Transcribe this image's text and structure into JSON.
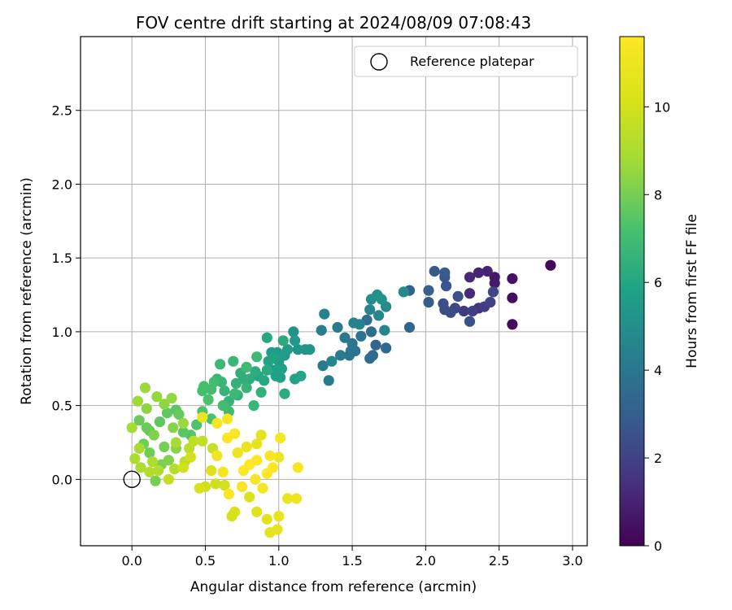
{
  "chart_data": {
    "type": "scatter",
    "title": "FOV centre drift starting at 2024/08/09 07:08:43",
    "xlabel": "Angular distance from reference (arcmin)",
    "ylabel": "Rotation from reference (arcmin)",
    "colorbar_label": "Hours from first FF file",
    "xlim": [
      -0.35,
      3.1
    ],
    "ylim": [
      -0.45,
      3.0
    ],
    "x_ticks": [
      "0.0",
      "0.5",
      "1.0",
      "1.5",
      "2.0",
      "2.5",
      "3.0"
    ],
    "x_tick_values": [
      0.0,
      0.5,
      1.0,
      1.5,
      2.0,
      2.5,
      3.0
    ],
    "y_ticks": [
      "0.0",
      "0.5",
      "1.0",
      "1.5",
      "2.0",
      "2.5"
    ],
    "y_tick_values": [
      0.0,
      0.5,
      1.0,
      1.5,
      2.0,
      2.5
    ],
    "colorbar_ticks": [
      "0",
      "2",
      "4",
      "6",
      "8",
      "10"
    ],
    "colorbar_tick_values": [
      0,
      2,
      4,
      6,
      8,
      10
    ],
    "color_range": [
      0,
      11.6
    ],
    "colormap": "viridis",
    "grid": true,
    "legend": {
      "placement": "top-right",
      "label": "Reference platepar"
    },
    "reference_point": {
      "x": 0.0,
      "y": 0.0
    },
    "series": [
      {
        "points": [
          [
            2.85,
            1.45,
            0.2
          ],
          [
            2.59,
            1.05,
            0.3
          ],
          [
            2.59,
            1.23,
            0.4
          ],
          [
            2.59,
            1.36,
            0.5
          ],
          [
            2.47,
            1.37,
            0.7
          ],
          [
            2.47,
            1.33,
            0.8
          ],
          [
            2.42,
            1.41,
            1.0
          ],
          [
            2.36,
            1.4,
            1.1
          ],
          [
            2.3,
            1.37,
            1.2
          ],
          [
            2.3,
            1.26,
            1.3
          ],
          [
            2.36,
            1.16,
            1.5
          ],
          [
            2.26,
            1.14,
            1.7
          ],
          [
            2.4,
            1.17,
            1.8
          ],
          [
            2.32,
            1.14,
            1.9
          ],
          [
            2.44,
            1.2,
            2.0
          ],
          [
            2.46,
            1.27,
            2.1
          ],
          [
            2.2,
            1.16,
            2.2
          ],
          [
            2.17,
            1.13,
            2.3
          ],
          [
            2.13,
            1.15,
            2.4
          ],
          [
            2.12,
            1.19,
            2.4
          ],
          [
            2.3,
            1.07,
            2.5
          ],
          [
            2.22,
            1.24,
            2.6
          ],
          [
            2.14,
            1.31,
            2.7
          ],
          [
            2.13,
            1.37,
            2.7
          ],
          [
            2.06,
            1.41,
            2.8
          ],
          [
            2.13,
            1.4,
            2.9
          ],
          [
            2.02,
            1.2,
            3.0
          ],
          [
            2.02,
            1.28,
            3.1
          ],
          [
            1.89,
            1.28,
            3.2
          ],
          [
            1.89,
            1.03,
            3.3
          ],
          [
            1.73,
            0.89,
            3.4
          ],
          [
            1.64,
            0.84,
            3.5
          ],
          [
            1.63,
            1.0,
            3.6
          ],
          [
            1.6,
            1.08,
            3.7
          ],
          [
            1.52,
            0.87,
            3.8
          ],
          [
            1.48,
            0.84,
            3.9
          ],
          [
            1.49,
            0.87,
            3.9
          ],
          [
            1.45,
            0.96,
            4.0
          ],
          [
            1.4,
            1.03,
            4.1
          ],
          [
            1.34,
            0.67,
            4.1
          ],
          [
            1.3,
            0.77,
            4.2
          ],
          [
            1.29,
            1.01,
            4.3
          ],
          [
            1.31,
            1.12,
            4.4
          ],
          [
            1.51,
            1.06,
            4.5
          ],
          [
            1.55,
            1.05,
            4.5
          ],
          [
            1.62,
            1.15,
            4.6
          ],
          [
            1.72,
            1.01,
            4.7
          ],
          [
            1.68,
            1.11,
            4.7
          ],
          [
            1.73,
            1.17,
            4.8
          ],
          [
            1.85,
            1.27,
            4.9
          ],
          [
            1.63,
            1.22,
            5.0
          ],
          [
            1.67,
            1.25,
            5.1
          ],
          [
            1.7,
            1.22,
            5.2
          ],
          [
            1.13,
            0.88,
            5.3
          ],
          [
            1.18,
            0.88,
            5.3
          ],
          [
            1.11,
            0.94,
            5.4
          ],
          [
            1.04,
            0.84,
            5.5
          ],
          [
            1.0,
            0.8,
            5.5
          ],
          [
            0.99,
            0.86,
            5.6
          ],
          [
            0.95,
            0.86,
            5.6
          ],
          [
            0.96,
            0.74,
            5.7
          ],
          [
            1.01,
            0.69,
            5.7
          ],
          [
            1.02,
            0.75,
            5.8
          ],
          [
            0.98,
            0.7,
            5.8
          ],
          [
            0.93,
            0.8,
            5.9
          ],
          [
            1.11,
            0.68,
            5.9
          ],
          [
            1.15,
            0.7,
            6.0
          ],
          [
            0.86,
            0.7,
            6.0
          ],
          [
            0.9,
            0.67,
            6.1
          ],
          [
            0.92,
            0.96,
            6.1
          ],
          [
            1.03,
            0.94,
            6.2
          ],
          [
            1.04,
            0.58,
            6.2
          ],
          [
            0.8,
            0.68,
            6.3
          ],
          [
            0.84,
            0.73,
            6.3
          ],
          [
            0.76,
            0.68,
            6.4
          ],
          [
            0.74,
            0.72,
            6.4
          ],
          [
            0.71,
            0.65,
            6.5
          ],
          [
            0.72,
            0.57,
            6.5
          ],
          [
            0.66,
            0.53,
            6.6
          ],
          [
            0.63,
            0.6,
            6.6
          ],
          [
            0.61,
            0.66,
            6.7
          ],
          [
            0.58,
            0.68,
            6.7
          ],
          [
            0.6,
            0.78,
            6.8
          ],
          [
            0.69,
            0.8,
            6.8
          ],
          [
            0.78,
            0.76,
            6.9
          ],
          [
            0.85,
            0.83,
            6.9
          ],
          [
            0.54,
            0.61,
            7.0
          ],
          [
            0.56,
            0.66,
            7.0
          ],
          [
            0.49,
            0.63,
            7.1
          ],
          [
            0.48,
            0.6,
            7.1
          ],
          [
            0.52,
            0.54,
            7.2
          ],
          [
            0.54,
            0.41,
            7.2
          ],
          [
            0.48,
            0.46,
            7.3
          ],
          [
            0.44,
            0.37,
            7.3
          ],
          [
            0.4,
            0.3,
            7.4
          ],
          [
            0.35,
            0.32,
            7.5
          ],
          [
            0.3,
            0.47,
            7.5
          ],
          [
            0.24,
            0.45,
            7.6
          ],
          [
            0.19,
            0.39,
            7.6
          ],
          [
            0.12,
            0.33,
            7.7
          ],
          [
            0.1,
            0.35,
            7.8
          ],
          [
            0.05,
            0.4,
            7.8
          ],
          [
            0.08,
            0.24,
            7.9
          ],
          [
            0.12,
            0.18,
            7.9
          ],
          [
            0.16,
            -0.01,
            8.0
          ],
          [
            0.2,
            0.1,
            8.1
          ],
          [
            0.25,
            0.13,
            8.2
          ],
          [
            0.3,
            0.21,
            8.3
          ],
          [
            0.28,
            0.35,
            8.3
          ],
          [
            0.22,
            0.51,
            8.4
          ],
          [
            0.17,
            0.56,
            8.5
          ],
          [
            0.27,
            0.55,
            8.5
          ],
          [
            0.09,
            0.62,
            8.6
          ],
          [
            0.04,
            0.53,
            8.7
          ],
          [
            0.0,
            0.35,
            8.8
          ],
          [
            0.05,
            0.21,
            8.9
          ],
          [
            0.02,
            0.14,
            9.0
          ],
          [
            0.14,
            0.12,
            9.1
          ],
          [
            0.18,
            0.06,
            9.2
          ],
          [
            0.29,
            0.07,
            9.3
          ],
          [
            0.36,
            0.12,
            9.4
          ],
          [
            0.39,
            0.21,
            9.4
          ],
          [
            0.42,
            0.26,
            9.5
          ],
          [
            0.48,
            0.26,
            9.6
          ],
          [
            0.55,
            0.21,
            9.7
          ],
          [
            0.5,
            -0.05,
            9.8
          ],
          [
            0.57,
            -0.03,
            9.9
          ],
          [
            0.63,
            -0.04,
            10.0
          ],
          [
            0.68,
            -0.25,
            10.1
          ],
          [
            0.7,
            -0.22,
            10.2
          ],
          [
            0.8,
            -0.12,
            10.3
          ],
          [
            0.85,
            -0.22,
            10.4
          ],
          [
            0.92,
            -0.27,
            10.5
          ],
          [
            0.94,
            -0.36,
            10.6
          ],
          [
            0.99,
            -0.34,
            10.7
          ],
          [
            1.0,
            -0.25,
            10.8
          ],
          [
            1.06,
            -0.13,
            10.9
          ],
          [
            1.12,
            -0.13,
            11.0
          ],
          [
            1.0,
            0.15,
            11.1
          ],
          [
            1.13,
            0.08,
            11.2
          ],
          [
            1.01,
            0.28,
            11.3
          ],
          [
            0.94,
            0.16,
            11.4
          ],
          [
            0.85,
            0.13,
            11.5
          ],
          [
            0.8,
            0.1,
            11.6
          ],
          [
            0.76,
            0.06,
            11.6
          ],
          [
            0.65,
            0.28,
            11.5
          ],
          [
            0.7,
            0.31,
            11.4
          ],
          [
            0.58,
            0.38,
            11.3
          ],
          [
            0.65,
            0.41,
            11.2
          ],
          [
            0.48,
            0.42,
            10.9
          ],
          [
            0.62,
            0.05,
            11.3
          ],
          [
            0.58,
            0.16,
            11.1
          ],
          [
            0.66,
            -0.1,
            11.5
          ],
          [
            0.75,
            -0.05,
            11.4
          ],
          [
            0.84,
            0.0,
            11.3
          ],
          [
            0.89,
            -0.06,
            11.2
          ],
          [
            0.92,
            0.04,
            11.6
          ],
          [
            0.96,
            0.08,
            11.5
          ],
          [
            0.72,
            0.18,
            11.0
          ],
          [
            0.78,
            0.22,
            10.8
          ],
          [
            0.85,
            0.24,
            10.7
          ],
          [
            0.88,
            0.3,
            10.6
          ],
          [
            0.54,
            0.06,
            10.3
          ],
          [
            0.46,
            -0.06,
            10.2
          ],
          [
            0.4,
            0.15,
            10.0
          ],
          [
            0.35,
            0.08,
            9.9
          ],
          [
            0.25,
            0.0,
            9.6
          ],
          [
            0.12,
            0.05,
            9.2
          ],
          [
            0.06,
            0.08,
            9.0
          ],
          [
            0.3,
            0.25,
            8.9
          ],
          [
            0.35,
            0.38,
            8.6
          ],
          [
            0.1,
            0.48,
            8.4
          ],
          [
            0.15,
            0.3,
            8.2
          ],
          [
            0.22,
            0.22,
            8.0
          ],
          [
            0.32,
            0.44,
            7.7
          ],
          [
            0.62,
            0.5,
            7.0
          ],
          [
            0.7,
            0.58,
            6.8
          ],
          [
            0.78,
            0.62,
            6.6
          ],
          [
            0.66,
            0.46,
            6.9
          ],
          [
            0.83,
            0.5,
            6.7
          ],
          [
            0.88,
            0.59,
            6.5
          ],
          [
            0.92,
            0.74,
            6.2
          ],
          [
            0.97,
            0.82,
            5.9
          ],
          [
            1.06,
            0.88,
            5.6
          ],
          [
            1.1,
            1.0,
            5.2
          ],
          [
            1.21,
            0.88,
            5.3
          ],
          [
            1.36,
            0.8,
            4.6
          ],
          [
            1.42,
            0.84,
            4.2
          ],
          [
            1.5,
            0.92,
            4.0
          ],
          [
            1.56,
            0.97,
            3.8
          ],
          [
            1.62,
            0.82,
            3.6
          ],
          [
            1.66,
            0.91,
            3.3
          ]
        ]
      }
    ]
  }
}
